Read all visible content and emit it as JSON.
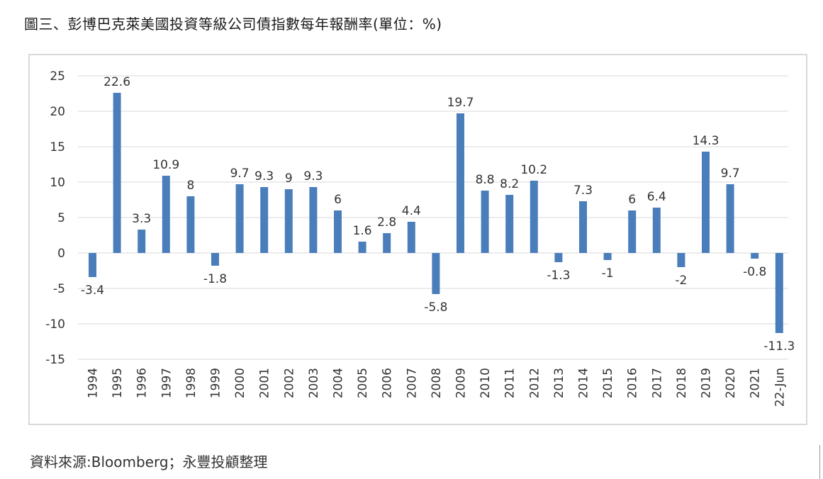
{
  "title": "圖三、彭博巴克萊美國投資等級公司債指數每年報酬率(單位：%)",
  "source": "資料來源:Bloomberg；永豐投顧整理",
  "chart_data": {
    "type": "bar",
    "categories": [
      "1994",
      "1995",
      "1996",
      "1997",
      "1998",
      "1999",
      "2000",
      "2001",
      "2002",
      "2003",
      "2004",
      "2005",
      "2006",
      "2007",
      "2008",
      "2009",
      "2010",
      "2011",
      "2012",
      "2013",
      "2014",
      "2015",
      "2016",
      "2017",
      "2018",
      "2019",
      "2020",
      "2021",
      "22-Jun"
    ],
    "values": [
      -3.4,
      22.6,
      3.3,
      10.9,
      8,
      -1.8,
      9.7,
      9.3,
      9,
      9.3,
      6,
      1.6,
      2.8,
      4.4,
      -5.8,
      19.7,
      8.8,
      8.2,
      10.2,
      -1.3,
      7.3,
      -1,
      6,
      6.4,
      -2,
      14.3,
      9.7,
      -0.8,
      -11.3
    ],
    "data_labels": [
      "-3.4",
      "22.6",
      "3.3",
      "10.9",
      "8",
      "-1.8",
      "9.7",
      "9.3",
      "9",
      "9.3",
      "6",
      "1.6",
      "2.8",
      "4.4",
      "-5.8",
      "19.7",
      "8.8",
      "8.2",
      "10.2",
      "-1.3",
      "7.3",
      "-1",
      "6",
      "6.4",
      "-2",
      "14.3",
      "9.7",
      "-0.8",
      "-11.3"
    ],
    "yticks": [
      25,
      20,
      15,
      10,
      5,
      0,
      -5,
      -10,
      -15
    ],
    "ylim": [
      -15,
      25
    ],
    "grid": true,
    "bar_color": "#4a7ebb"
  }
}
